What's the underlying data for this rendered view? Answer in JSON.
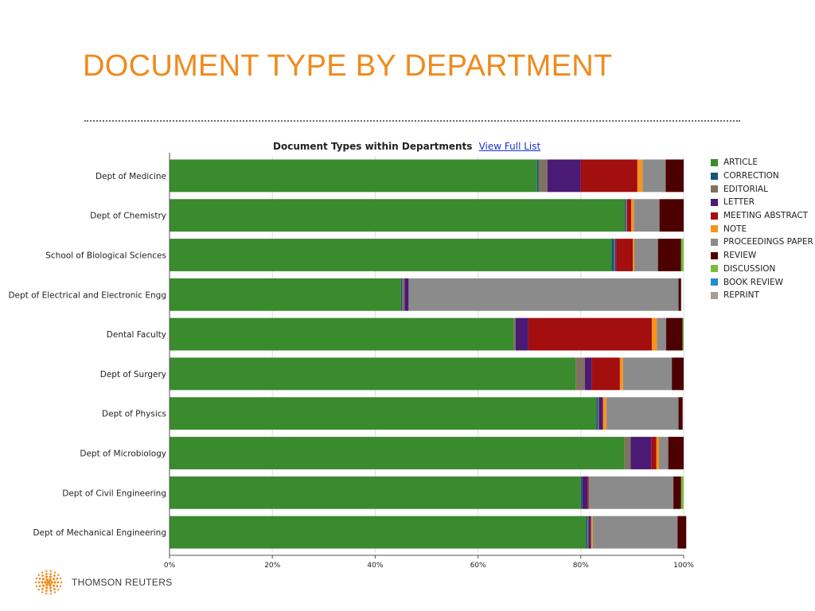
{
  "slide": {
    "title": "DOCUMENT TYPE BY DEPARTMENT",
    "title_color": "#f08a1c"
  },
  "logo": {
    "brand_text": "THOMSON REUTERS",
    "icon": "thomson-reuters-dot-sphere-icon",
    "color": "#f08a1c"
  },
  "chart_heading": {
    "title": "Document Types within Departments",
    "link_label": "View Full List"
  },
  "chart_data": {
    "type": "bar",
    "orientation": "horizontal",
    "stacked": true,
    "normalized_percent": true,
    "title": "Document Types within Departments",
    "xlim": [
      0,
      100
    ],
    "x_ticks": [
      "0%",
      "20%",
      "40%",
      "60%",
      "80%",
      "100%"
    ],
    "grid": true,
    "legend_position": "right",
    "categories": [
      "Dept of Medicine",
      "Dept of Chemistry",
      "School of Biological Sciences",
      "Dept of Electrical and Electronic Engg",
      "Dental Faculty",
      "Dept of Surgery",
      "Dept of Physics",
      "Dept of Microbiology",
      "Dept of Civil Engineering",
      "Dept of Mechanical Engineering"
    ],
    "series": [
      {
        "name": "ARTICLE",
        "color": "#3a8a2e",
        "values": [
          71.5,
          88.5,
          86.0,
          45.0,
          67.0,
          79.0,
          83.0,
          88.5,
          80.0,
          81.0
        ]
      },
      {
        "name": "CORRECTION",
        "color": "#16557a",
        "values": [
          0.3,
          0.2,
          0.5,
          0.2,
          0.0,
          0.0,
          0.3,
          0.0,
          0.3,
          0.3
        ]
      },
      {
        "name": "EDITORIAL",
        "color": "#7f7261",
        "values": [
          1.7,
          0.3,
          0.2,
          0.5,
          0.3,
          1.8,
          0.2,
          1.2,
          0.0,
          0.2
        ]
      },
      {
        "name": "LETTER",
        "color": "#4a1a75",
        "values": [
          6.5,
          0.0,
          0.2,
          0.8,
          2.5,
          1.3,
          0.8,
          4.0,
          1.0,
          0.5
        ]
      },
      {
        "name": "MEETING ABSTRACT",
        "color": "#a30e0e",
        "values": [
          11.0,
          0.8,
          3.2,
          0.0,
          24.0,
          5.5,
          0.0,
          1.0,
          0.2,
          0.0
        ]
      },
      {
        "name": "NOTE",
        "color": "#f7941d",
        "values": [
          1.0,
          0.5,
          0.3,
          0.0,
          1.0,
          0.6,
          0.7,
          0.5,
          0.0,
          0.3
        ]
      },
      {
        "name": "PROCEEDINGS PAPER",
        "color": "#8b8b8b",
        "values": [
          4.5,
          5.0,
          4.6,
          52.5,
          1.8,
          9.5,
          14.0,
          1.8,
          16.5,
          16.5
        ]
      },
      {
        "name": "REVIEW",
        "color": "#4d0000",
        "values": [
          3.5,
          4.7,
          4.5,
          0.5,
          3.2,
          2.3,
          0.8,
          3.0,
          1.5,
          1.7
        ]
      },
      {
        "name": "DISCUSSION",
        "color": "#7dbb3c",
        "values": [
          0.0,
          0.0,
          0.5,
          0.0,
          0.2,
          0.0,
          0.0,
          0.0,
          0.5,
          0.0
        ]
      },
      {
        "name": "BOOK REVIEW",
        "color": "#1f8fc8",
        "values": [
          0.0,
          0.0,
          0.0,
          0.0,
          0.0,
          0.0,
          0.0,
          0.0,
          0.0,
          0.0
        ]
      },
      {
        "name": "REPRINT",
        "color": "#a39d92",
        "values": [
          0.0,
          0.0,
          0.0,
          0.0,
          0.0,
          0.0,
          0.0,
          0.0,
          0.0,
          0.0
        ]
      }
    ]
  }
}
